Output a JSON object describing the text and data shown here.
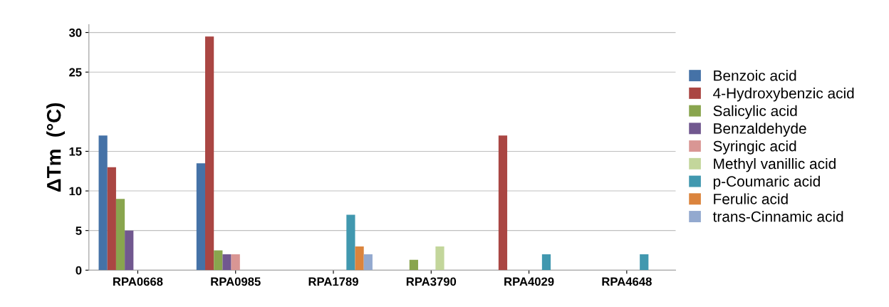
{
  "chart_data": {
    "type": "bar",
    "ylabel": "ΔTm  (°C)",
    "categories": [
      "RPA0668",
      "RPA0985",
      "RPA1789",
      "RPA3790",
      "RPA4029",
      "RPA4648"
    ],
    "series": [
      {
        "name": "Benzoic acid",
        "color": "#4572a7",
        "values": [
          17,
          13.5,
          0,
          0,
          0,
          0
        ]
      },
      {
        "name": "4-Hydroxybenzic acid",
        "color": "#aa4643",
        "values": [
          13,
          29.5,
          0,
          0,
          17,
          0
        ]
      },
      {
        "name": "Salicylic acid",
        "color": "#89a54e",
        "values": [
          9,
          2.5,
          0,
          1.3,
          0,
          0
        ]
      },
      {
        "name": "Benzaldehyde",
        "color": "#71588f",
        "values": [
          5,
          2,
          0,
          0,
          0,
          0
        ]
      },
      {
        "name": "Syringic acid",
        "color": "#d99694",
        "values": [
          0,
          2,
          0,
          0,
          0,
          0
        ]
      },
      {
        "name": "Methyl vanillic acid",
        "color": "#c3d69b",
        "values": [
          0,
          0,
          0,
          3,
          0,
          0
        ]
      },
      {
        "name": "p-Coumaric acid",
        "color": "#4198af",
        "values": [
          0,
          0,
          7,
          0,
          2,
          2
        ]
      },
      {
        "name": "Ferulic acid",
        "color": "#db843d",
        "values": [
          0,
          0,
          3,
          0,
          0,
          0
        ]
      },
      {
        "name": "trans-Cinnamic acid",
        "color": "#93a9cf",
        "values": [
          0,
          0,
          2,
          0,
          0,
          0
        ]
      }
    ],
    "ylim": [
      0,
      31
    ],
    "yticks": [
      0,
      5,
      10,
      15,
      25,
      30
    ],
    "grid": "y",
    "legend": "right"
  }
}
